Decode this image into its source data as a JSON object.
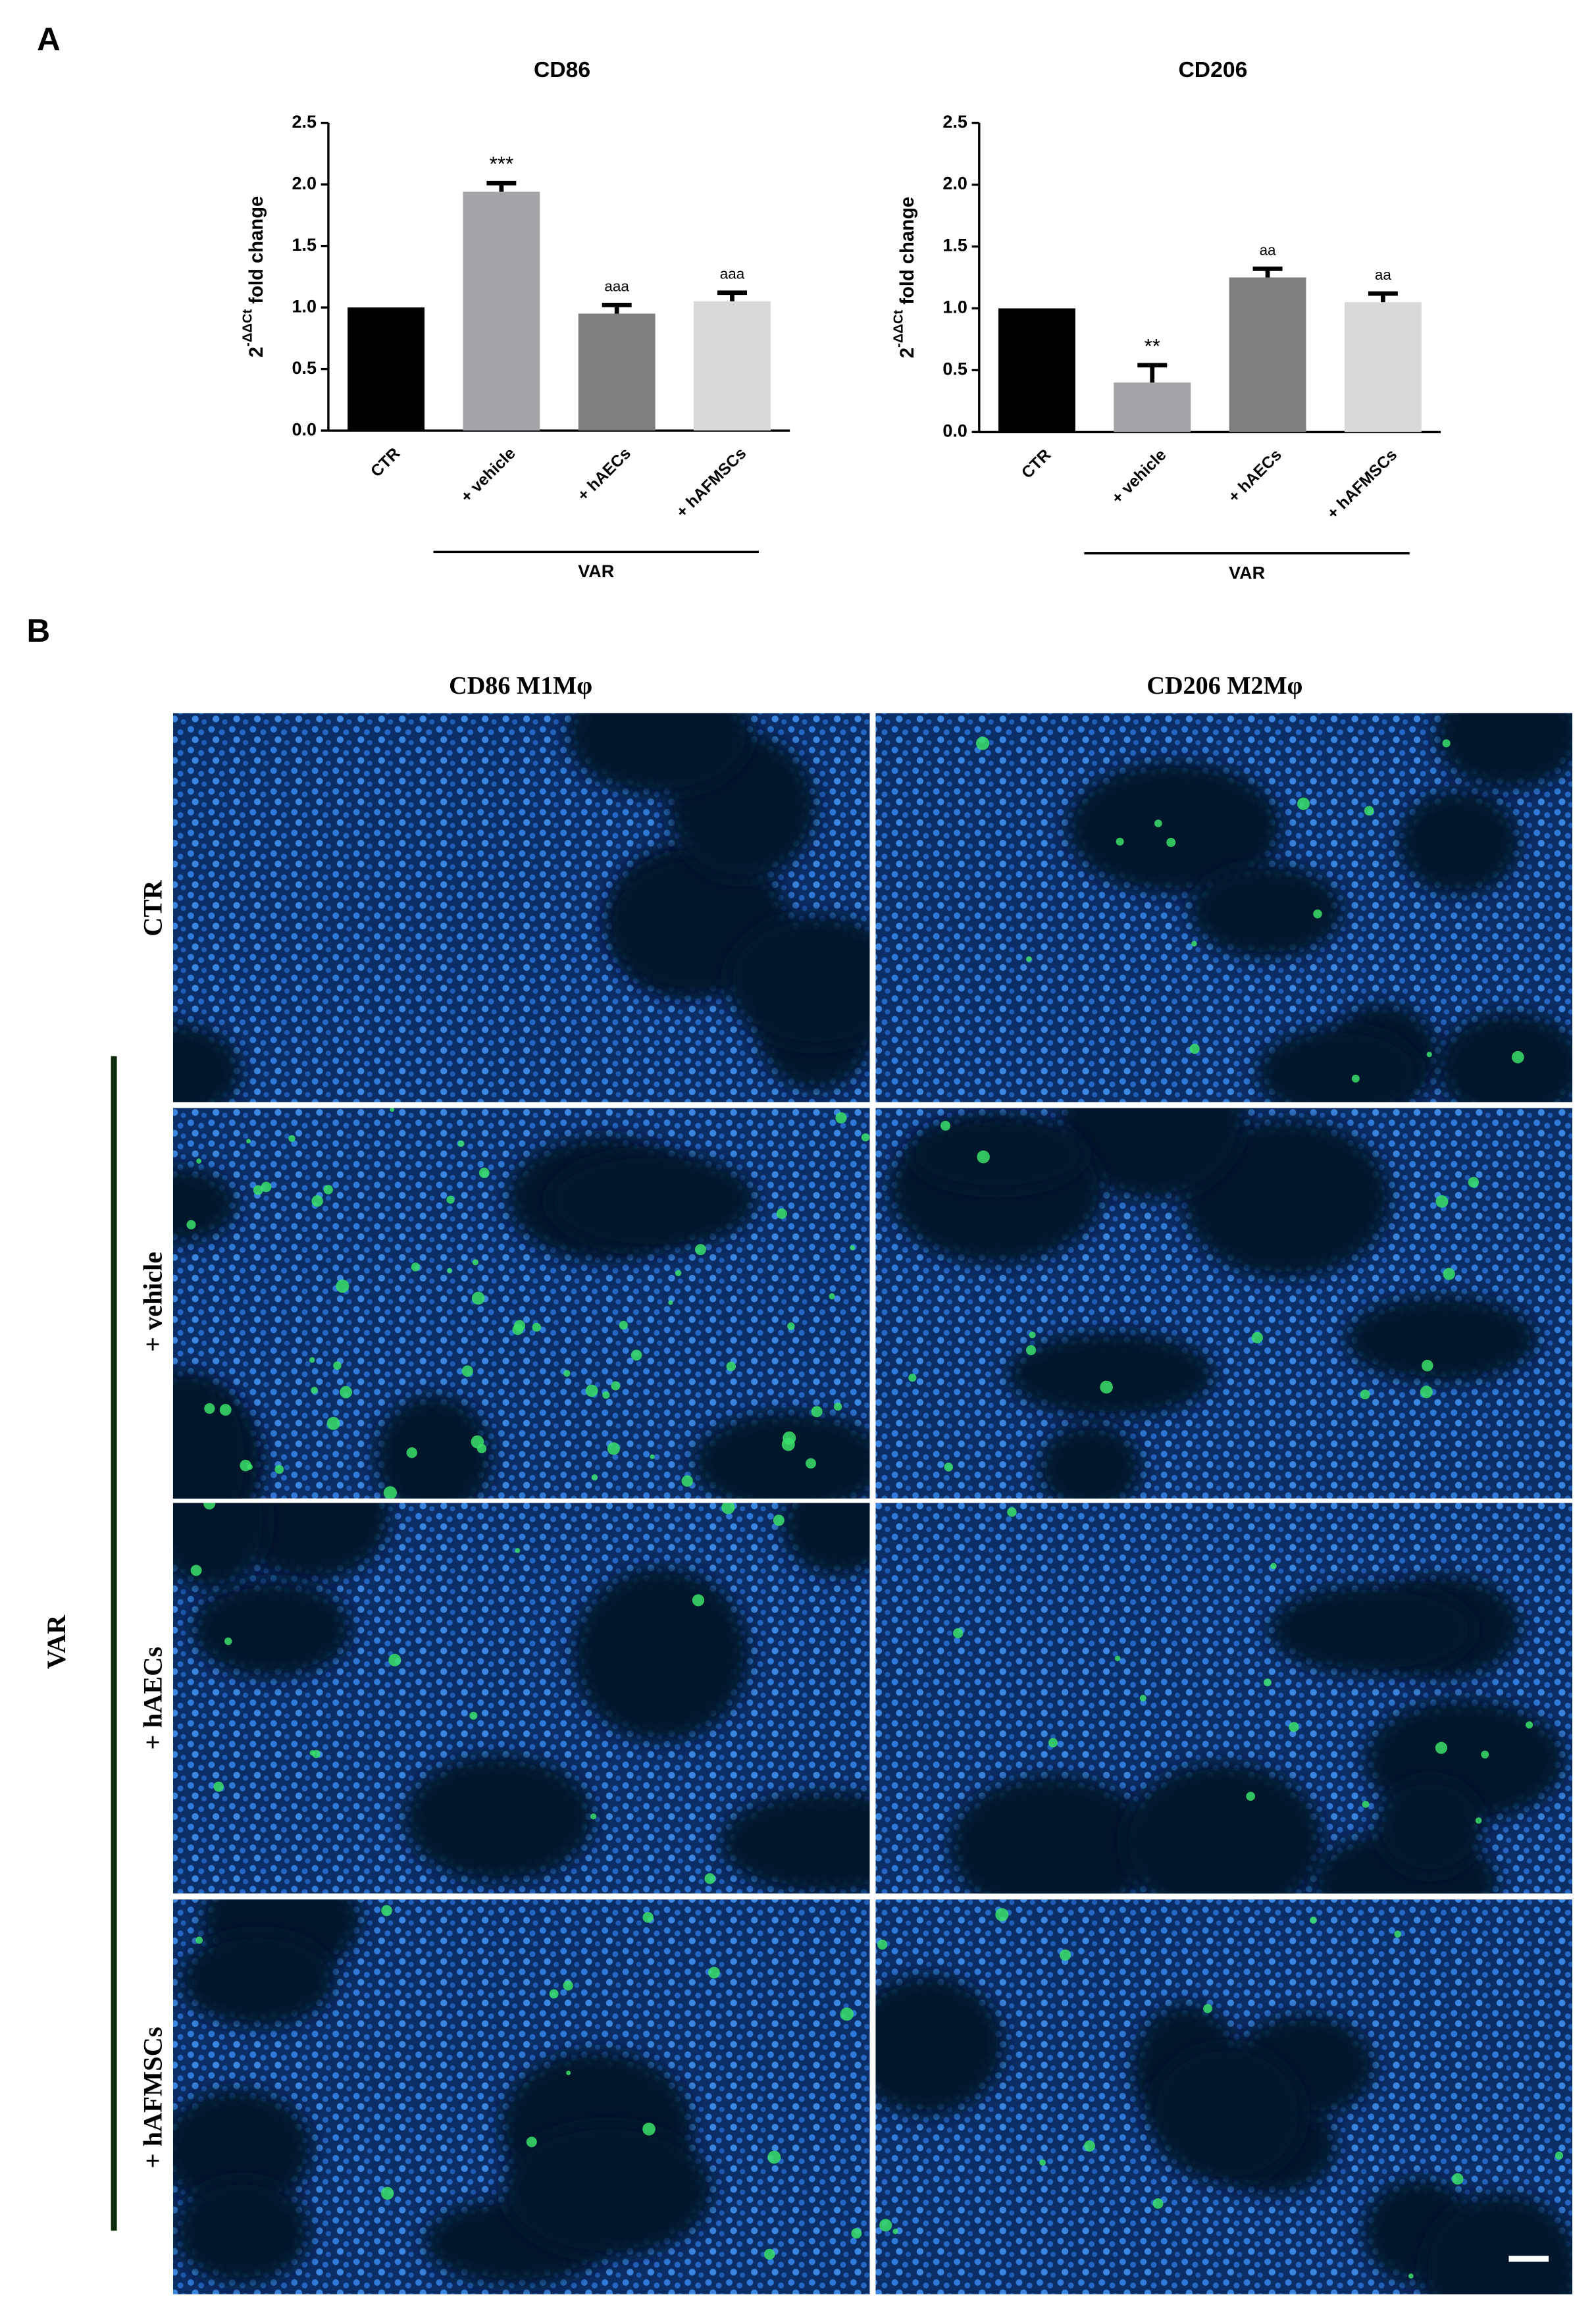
{
  "panels": {
    "a": "A",
    "b": "B"
  },
  "chart_data": [
    {
      "type": "bar",
      "title": "CD86",
      "ylabel": {
        "base": "2",
        "sup": "-ΔΔCt",
        "rest": " fold change"
      },
      "categories": [
        "CTR",
        "+ vehicle",
        "+ hAECs",
        "+ hAFMSCs"
      ],
      "values": [
        1.0,
        1.94,
        0.95,
        1.05
      ],
      "errors": [
        null,
        0.07,
        0.07,
        0.07
      ],
      "annotations": [
        null,
        "***",
        "aaa",
        "aaa"
      ],
      "colors": [
        "#000000",
        "#a4a4a9",
        "#7f7f7f",
        "#d9d9d9"
      ],
      "group_label": "VAR",
      "ylim": [
        0,
        2.5
      ],
      "yticks": [
        {
          "value": 0,
          "label": "0.0"
        },
        0.5,
        {
          "value": 1,
          "label": "1.0"
        },
        1.5,
        {
          "value": 2,
          "label": "2.0"
        },
        2.5
      ]
    },
    {
      "type": "bar",
      "title": "CD206",
      "ylabel": {
        "base": "2",
        "sup": "-ΔΔCt",
        "rest": " fold change"
      },
      "categories": [
        "CTR",
        "+ vehicle",
        "+ hAECs",
        "+ hAFMSCs"
      ],
      "values": [
        1.0,
        0.4,
        1.25,
        1.05
      ],
      "errors": [
        null,
        0.14,
        0.07,
        0.07
      ],
      "annotations": [
        null,
        "**",
        "aa",
        "aa"
      ],
      "colors": [
        "#000000",
        "#a4a4a9",
        "#7f7f7f",
        "#d9d9d9"
      ],
      "group_label": "VAR",
      "ylim": [
        0,
        2.5
      ],
      "yticks": [
        {
          "value": 0,
          "label": "0.0"
        },
        0.5,
        {
          "value": 1,
          "label": "1.0"
        },
        1.5,
        {
          "value": 2,
          "label": "2.0"
        },
        2.5
      ]
    }
  ],
  "micrographs": {
    "columns": [
      "CD86 M1Mφ",
      "CD206 M2Mφ"
    ],
    "rows": [
      "CTR",
      "+ vehicle",
      "+ hAECs",
      "+ hAFMSCs"
    ],
    "group_label": "VAR"
  }
}
